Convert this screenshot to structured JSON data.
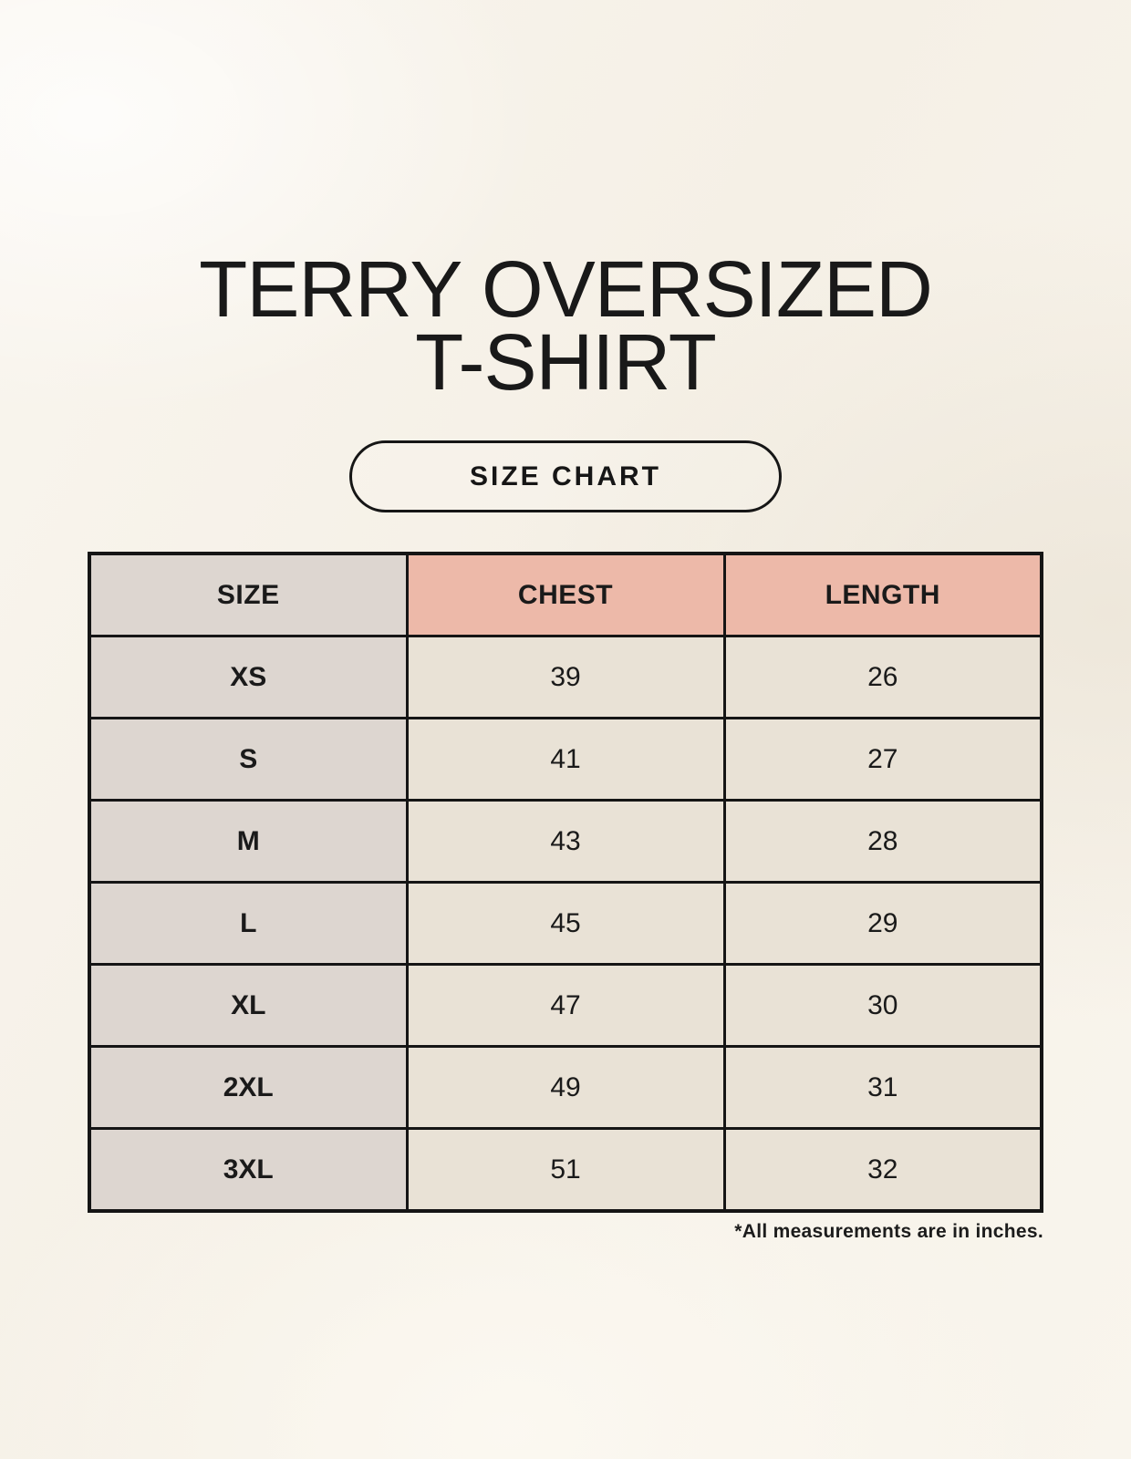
{
  "header": {
    "title_line1": "TERRY OVERSIZED",
    "title_line2": "T-SHIRT",
    "badge_label": "SIZE CHART"
  },
  "chart_data": {
    "type": "table",
    "title": "TERRY OVERSIZED T-SHIRT",
    "subtitle": "SIZE CHART",
    "columns": [
      "SIZE",
      "CHEST",
      "LENGTH"
    ],
    "rows": [
      [
        "XS",
        "39",
        "26"
      ],
      [
        "S",
        "41",
        "27"
      ],
      [
        "M",
        "43",
        "28"
      ],
      [
        "L",
        "45",
        "29"
      ],
      [
        "XL",
        "47",
        "30"
      ],
      [
        "2XL",
        "49",
        "31"
      ],
      [
        "3XL",
        "51",
        "32"
      ]
    ],
    "units_note": "*All measurements are in inches."
  },
  "colors": {
    "background": "#f8f4ec",
    "accent_header": "#edb9a9",
    "size_column": "#ddd6d0",
    "data_cell": "#e9e2d6",
    "grid_line": "#151515",
    "text": "#1a1a1a"
  }
}
